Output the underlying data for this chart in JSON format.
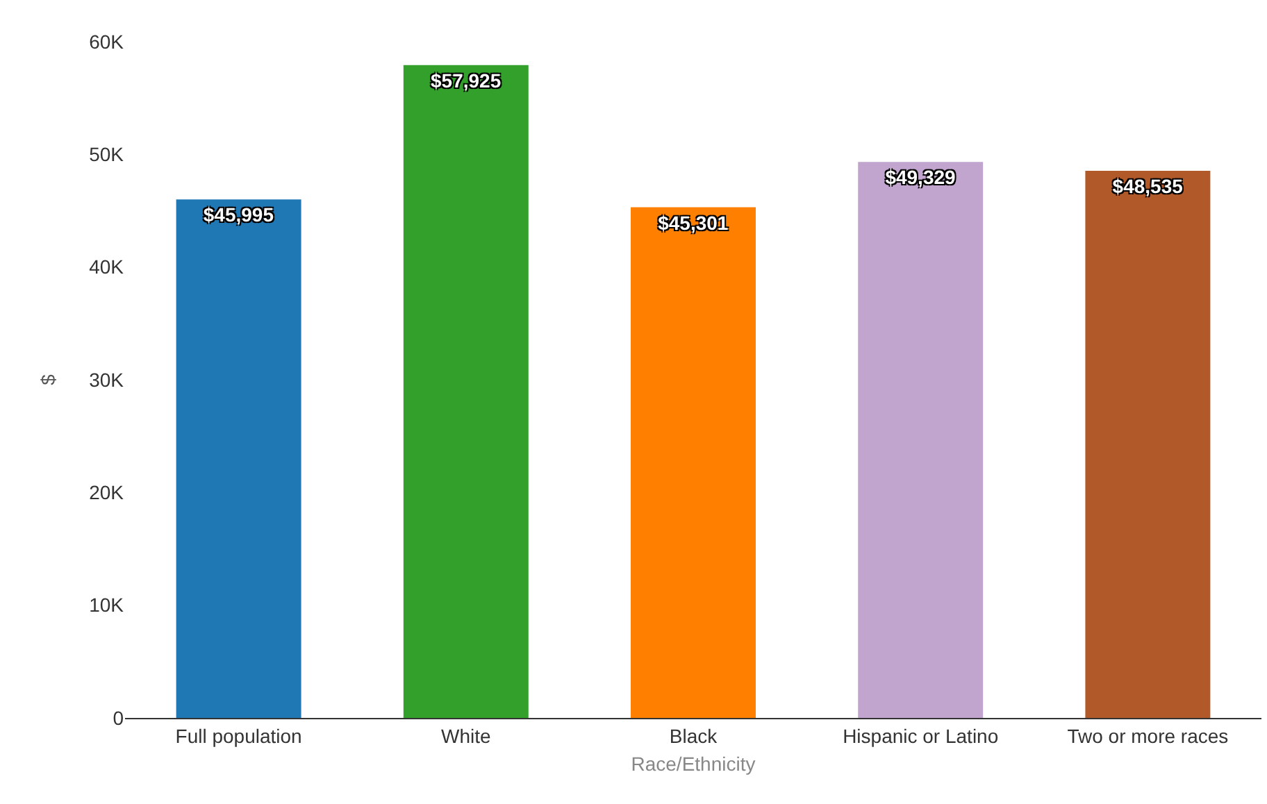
{
  "chart_data": {
    "type": "bar",
    "categories": [
      "Full population",
      "White",
      "Black",
      "Hispanic or Latino",
      "Two or more races"
    ],
    "values": [
      45995,
      57925,
      45301,
      49329,
      48535
    ],
    "colors": [
      "#1f77b4",
      "#33a02c",
      "#ff7f00",
      "#c2a5cf",
      "#b15928"
    ],
    "value_labels": [
      "$45,995",
      "$57,925",
      "$45,301",
      "$49,329",
      "$48,535"
    ],
    "xlabel": "Race/Ethnicity",
    "ylabel": "$",
    "ylim": [
      0,
      60000
    ],
    "yticks": [
      0,
      {
        "value": 10000,
        "label": "10K"
      },
      {
        "value": 20000,
        "label": "20K"
      },
      {
        "value": 30000,
        "label": "30K"
      },
      {
        "value": 40000,
        "label": "40K"
      },
      {
        "value": 50000,
        "label": "50K"
      },
      {
        "value": 60000,
        "label": "60K"
      }
    ]
  }
}
